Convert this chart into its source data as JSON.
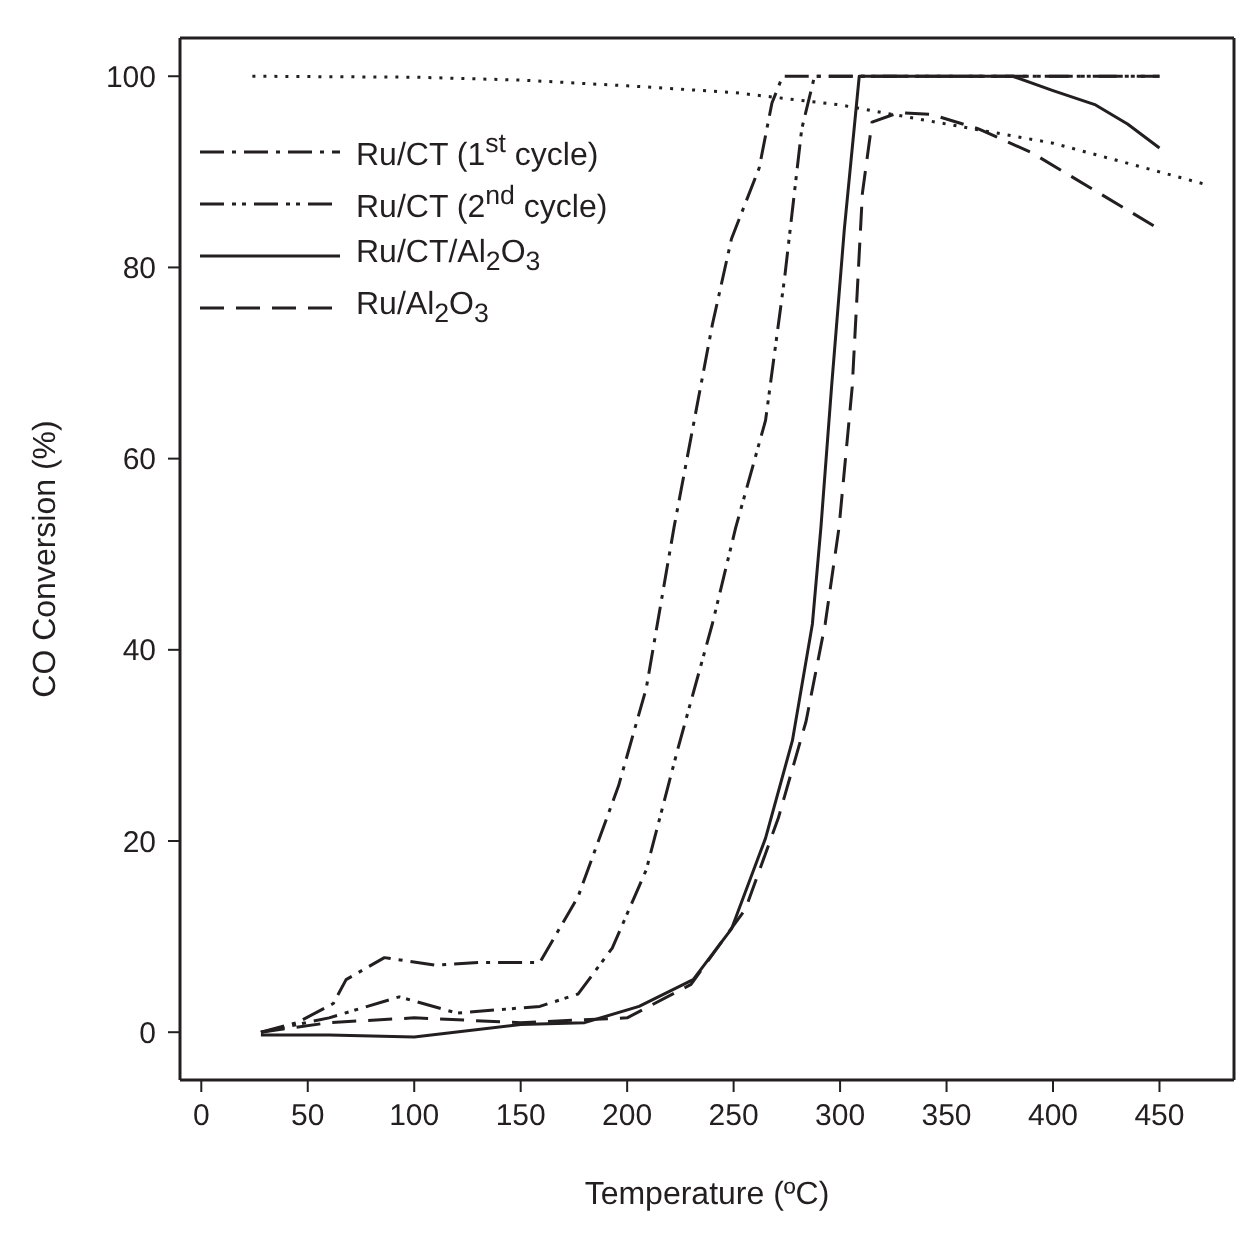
{
  "chart_data": {
    "type": "line",
    "xlabel": "Temperature (ºC)",
    "ylabel": "CO Conversion (%)",
    "xlim": [
      -10,
      485
    ],
    "xticks": [
      0,
      50,
      100,
      150,
      200,
      250,
      300,
      350,
      400,
      450
    ],
    "ylim": [
      -5,
      104
    ],
    "yticks": [
      0,
      20,
      40,
      60,
      80,
      100
    ],
    "legend": "top left",
    "marker": "none",
    "series": [
      {
        "name": "Ru/CT (1$^{st}$ cycle)",
        "color": "#231f20",
        "line_style": "dashdot",
        "x": [
          28,
          45,
          62,
          68,
          86,
          110,
          130,
          159,
          177,
          196,
          209,
          222,
          240,
          249,
          262,
          268,
          273,
          320,
          380,
          450
        ],
        "values": [
          0,
          1,
          3,
          5.5,
          7.8,
          7,
          7.3,
          7.3,
          14.2,
          25.8,
          36,
          52.8,
          74,
          83,
          90.4,
          97.2,
          100,
          100,
          100,
          100
        ]
      },
      {
        "name": "Ru/CT (2$^{nd}$ cycle)",
        "color": "#231f20",
        "line_style": "dashdotdot",
        "x": [
          28,
          60,
          93,
          120,
          159,
          177,
          193,
          209,
          224,
          240,
          251,
          265,
          274,
          282,
          288,
          350,
          450
        ],
        "values": [
          0,
          1.5,
          3.7,
          2,
          2.7,
          4,
          8.8,
          17,
          29.8,
          42.7,
          52.8,
          64,
          79,
          94.5,
          100,
          100,
          100
        ]
      },
      {
        "name": "Ru/CT/Al$_{2}$O$_{3}$",
        "color": "#231f20",
        "line_style": "solid",
        "x": [
          28,
          60,
          100,
          150,
          180,
          205.6,
          231,
          249,
          265,
          277.6,
          287,
          291,
          296,
          302,
          309,
          350,
          381,
          400,
          420,
          435,
          450
        ],
        "values": [
          -0.3,
          -0.3,
          -0.5,
          0.8,
          1,
          2.7,
          5.5,
          10.8,
          20.3,
          30.5,
          42.7,
          52.8,
          67.5,
          84,
          100,
          100,
          100,
          98.5,
          97,
          95,
          92.5
        ]
      },
      {
        "name": "Ru/Al$_{2}$O$_{3}$",
        "color": "#231f20",
        "line_style": "dashed",
        "x": [
          28,
          60,
          100,
          150,
          200,
          230,
          255.6,
          271,
          284,
          293,
          299.5,
          305.7,
          310.5,
          315,
          327.6,
          343,
          365,
          390,
          421.5,
          450
        ],
        "values": [
          0,
          1,
          1.5,
          1,
          1.5,
          5,
          12.9,
          22.4,
          32.5,
          42.7,
          52.8,
          67.5,
          87.8,
          95.2,
          96.2,
          96,
          94.5,
          92,
          87.8,
          84
        ]
      },
      {
        "color": "#231f20",
        "line_style": "dotted",
        "x": [
          24,
          100,
          150,
          200,
          250,
          300,
          350,
          400,
          450,
          473
        ],
        "values": [
          100,
          99.9,
          99.6,
          99,
          98.3,
          97,
          95,
          93,
          90,
          88.6
        ]
      }
    ]
  }
}
